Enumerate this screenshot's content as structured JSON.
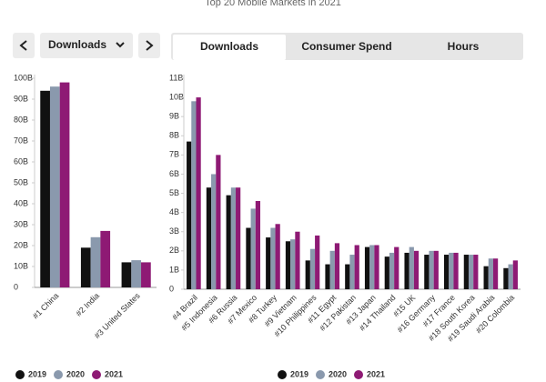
{
  "title": "Top 20 Mobile Markets in 2021",
  "controls": {
    "dropdown": "Downloads",
    "tabs": [
      "Downloads",
      "Consumer Spend",
      "Hours"
    ]
  },
  "chart_data": [
    {
      "type": "bar",
      "categories": [
        "#1 China",
        "#2 India",
        "#3 United States"
      ],
      "series": [
        {
          "name": "2019",
          "color": "#111111",
          "values": [
            94,
            19,
            12
          ]
        },
        {
          "name": "2020",
          "color": "#8a99ad",
          "values": [
            96,
            24,
            13
          ]
        },
        {
          "name": "2021",
          "color": "#8e1a74",
          "values": [
            98,
            27,
            12
          ]
        }
      ],
      "ylim": [
        0,
        100
      ],
      "yticks": [
        {
          "value": 0,
          "label": "0"
        },
        {
          "value": 10,
          "label": "10B"
        },
        {
          "value": 20,
          "label": "20B"
        },
        {
          "value": 30,
          "label": "30B"
        },
        {
          "value": 40,
          "label": "40B"
        },
        {
          "value": 50,
          "label": "50B"
        },
        {
          "value": 60,
          "label": "60B"
        },
        {
          "value": 70,
          "label": "70B"
        },
        {
          "value": 80,
          "label": "80B"
        },
        {
          "value": 90,
          "label": "90B"
        },
        {
          "value": 100,
          "label": "100B"
        }
      ],
      "grid": false
    },
    {
      "type": "bar",
      "categories": [
        "#4 Brazil",
        "#5 Indonesia",
        "#6 Russia",
        "#7 Mexico",
        "#8 Turkey",
        "#9 Vietnam",
        "#10 Philippines",
        "#11 Egypt",
        "#12 Pakistan",
        "#13 Japan",
        "#14 Thailand",
        "#15 UK",
        "#16 Germany",
        "#17 France",
        "#18 South Korea",
        "#19 Saudi Arabia",
        "#20 Colombia"
      ],
      "series": [
        {
          "name": "2019",
          "color": "#111111",
          "values": [
            7.7,
            5.3,
            4.9,
            3.2,
            2.7,
            2.5,
            1.5,
            1.3,
            1.3,
            2.2,
            1.7,
            1.9,
            1.8,
            1.8,
            1.8,
            1.2,
            1.1
          ]
        },
        {
          "name": "2020",
          "color": "#8a99ad",
          "values": [
            9.8,
            6.0,
            5.3,
            4.2,
            3.2,
            2.6,
            2.1,
            2.0,
            1.8,
            2.3,
            1.9,
            2.2,
            2.0,
            1.9,
            1.8,
            1.6,
            1.3
          ]
        },
        {
          "name": "2021",
          "color": "#8e1a74",
          "values": [
            10.0,
            7.0,
            5.3,
            4.6,
            3.4,
            3.0,
            2.8,
            2.4,
            2.3,
            2.3,
            2.2,
            2.0,
            2.0,
            1.9,
            1.8,
            1.6,
            1.5
          ]
        }
      ],
      "ylim": [
        0,
        11
      ],
      "yticks": [
        {
          "value": 0,
          "label": "0"
        },
        {
          "value": 1,
          "label": "1B"
        },
        {
          "value": 2,
          "label": "2B"
        },
        {
          "value": 3,
          "label": "3B"
        },
        {
          "value": 4,
          "label": "4B"
        },
        {
          "value": 5,
          "label": "5B"
        },
        {
          "value": 6,
          "label": "6B"
        },
        {
          "value": 7,
          "label": "7B"
        },
        {
          "value": 8,
          "label": "8B"
        },
        {
          "value": 9,
          "label": "9B"
        },
        {
          "value": 10,
          "label": "10B"
        },
        {
          "value": 11,
          "label": "11B"
        }
      ],
      "grid": false
    }
  ]
}
